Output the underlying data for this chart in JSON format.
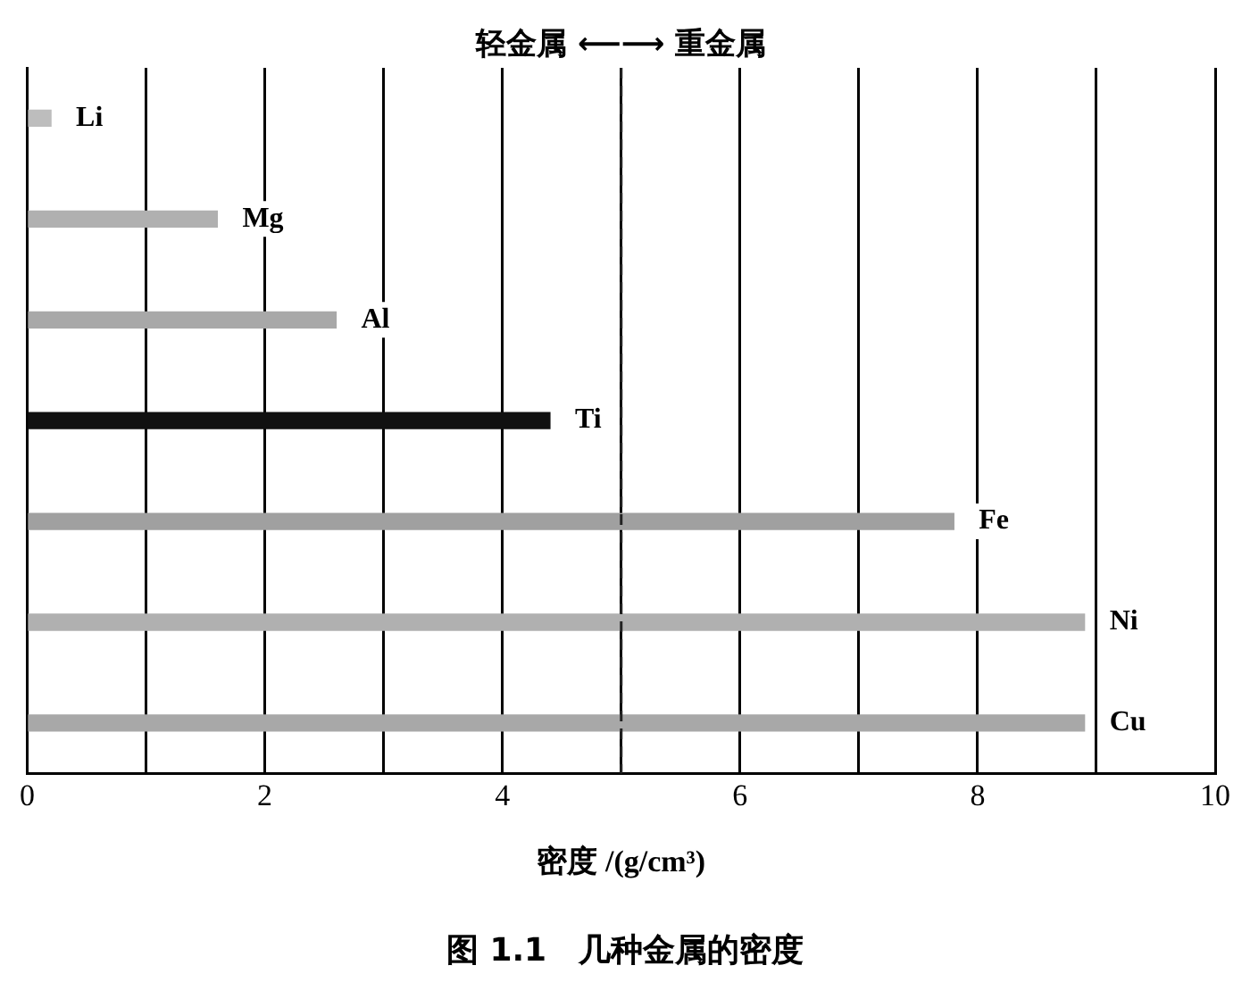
{
  "chart_data": {
    "type": "bar",
    "orientation": "horizontal",
    "title": "图 1.1　几种金属的密度",
    "xlabel": "密度 /(g/cm³)",
    "categories": [
      "Li",
      "Mg",
      "Al",
      "Ti",
      "Fe",
      "Ni",
      "Cu"
    ],
    "values": [
      0.2,
      1.6,
      2.6,
      4.4,
      7.8,
      8.9,
      8.9
    ],
    "colors": [
      "#bdbdbd",
      "#b0b0b0",
      "#a8a8a8",
      "#111111",
      "#a0a0a0",
      "#b0b0b0",
      "#a8a8a8"
    ],
    "xlim": [
      0,
      10
    ],
    "xticks": [
      0,
      {
        "value": 1,
        "label": null
      },
      2,
      {
        "value": 3,
        "label": null
      },
      4,
      {
        "value": 5,
        "label": null
      },
      6,
      {
        "value": 7,
        "label": null
      },
      8,
      {
        "value": 9,
        "label": null
      },
      10
    ],
    "grid": "x",
    "legend": false,
    "ref_lines": [
      {
        "axis": "x",
        "value": 5,
        "label": "轻金属 ⟵⟶ 重金属",
        "line_style": "dashed",
        "color": "#222222"
      }
    ]
  }
}
